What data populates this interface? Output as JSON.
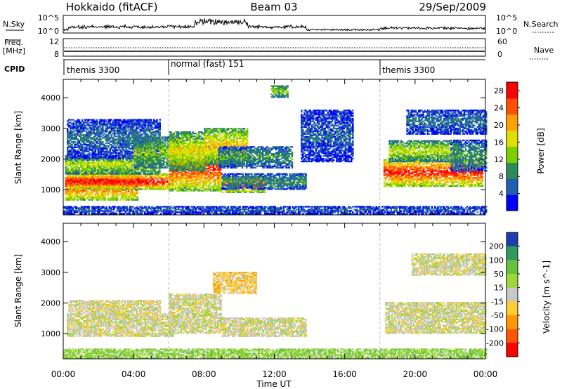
{
  "header": {
    "station": "Hokkaido (fitACF)",
    "beam": "Beam 03",
    "date": "29/Sep/2009"
  },
  "top_panels": {
    "nsky_label": "N.Sky",
    "nsky_ticks": [
      "10^5",
      "10^0"
    ],
    "nsearch_label": "N.Search",
    "freq_label": "Freq.",
    "freq_unit": "[MHz]",
    "freq_ticks": [
      "12",
      "8"
    ],
    "nave_label": "Nave",
    "nave_ticks": [
      "60",
      "0"
    ],
    "cpid_label": "CPID",
    "cpid_segments": [
      {
        "label": "themis 3300",
        "start_hour": 0
      },
      {
        "label": "normal (fast) 151",
        "start_hour": 6
      },
      {
        "label": "themis 3300",
        "start_hour": 18
      }
    ]
  },
  "chart_data": [
    {
      "type": "heatmap",
      "name": "power",
      "xlabel": "Time UT",
      "ylabel": "Slant Range [km]",
      "x_range_hours": [
        0,
        24
      ],
      "x_ticks": [
        "00:00",
        "04:00",
        "08:00",
        "12:00",
        "16:00",
        "20:00",
        "00:00"
      ],
      "ylim": [
        180,
        4600
      ],
      "y_ticks": [
        1000,
        2000,
        3000,
        4000
      ],
      "colorbar": {
        "label": "Power [dB]",
        "ticks": [
          4,
          8,
          12,
          16,
          20,
          24,
          28
        ],
        "range": [
          0,
          30
        ],
        "colors": [
          "#0000ff",
          "#2060b0",
          "#2e8b57",
          "#7cd000",
          "#e0e000",
          "#ffa000",
          "#ff5000",
          "#ff0000"
        ]
      },
      "regions": [
        {
          "t": [
            0.1,
            4.2
          ],
          "r": [
            650,
            1650
          ],
          "v": 28
        },
        {
          "t": [
            0.2,
            6.2
          ],
          "r": [
            1000,
            1500
          ],
          "v": 30
        },
        {
          "t": [
            0.1,
            5.5
          ],
          "r": [
            1500,
            2100
          ],
          "v": 16
        },
        {
          "t": [
            0.2,
            5.5
          ],
          "r": [
            2000,
            3300
          ],
          "v": 7
        },
        {
          "t": [
            4.0,
            6.5
          ],
          "r": [
            1700,
            2700
          ],
          "v": 14
        },
        {
          "t": [
            6.0,
            9.0
          ],
          "r": [
            950,
            2400
          ],
          "v": 27
        },
        {
          "t": [
            6.0,
            8.0
          ],
          "r": [
            1600,
            2900
          ],
          "v": 18
        },
        {
          "t": [
            8.0,
            10.5
          ],
          "r": [
            1800,
            3000
          ],
          "v": 20
        },
        {
          "t": [
            8.8,
            13.0
          ],
          "r": [
            1700,
            2400
          ],
          "v": 10
        },
        {
          "t": [
            9.0,
            11.5
          ],
          "r": [
            900,
            1400
          ],
          "v": 27
        },
        {
          "t": [
            9.0,
            13.8
          ],
          "r": [
            1000,
            1500
          ],
          "v": 10
        },
        {
          "t": [
            11.8,
            12.8
          ],
          "r": [
            4000,
            4400
          ],
          "v": 14
        },
        {
          "t": [
            13.5,
            16.5
          ],
          "r": [
            1900,
            3600
          ],
          "v": 6
        },
        {
          "t": [
            18.2,
            23.8
          ],
          "r": [
            1100,
            2000
          ],
          "v": 28
        },
        {
          "t": [
            18.5,
            22.5
          ],
          "r": [
            1900,
            2600
          ],
          "v": 16
        },
        {
          "t": [
            19.5,
            24.0
          ],
          "r": [
            2800,
            3600
          ],
          "v": 7
        },
        {
          "t": [
            22.0,
            24.0
          ],
          "r": [
            1600,
            2600
          ],
          "v": 10
        },
        {
          "t": [
            0.0,
            24.0
          ],
          "r": [
            200,
            450
          ],
          "v": 6
        }
      ]
    },
    {
      "type": "heatmap",
      "name": "velocity",
      "xlabel": "Time UT",
      "ylabel": "Slant Range [km]",
      "x_range_hours": [
        0,
        24
      ],
      "x_ticks": [
        "00:00",
        "04:00",
        "08:00",
        "12:00",
        "16:00",
        "20:00",
        "00:00"
      ],
      "ylim": [
        180,
        4600
      ],
      "y_ticks": [
        1000,
        2000,
        3000,
        4000
      ],
      "colorbar": {
        "label": "Velocity [m s^-1]",
        "ticks": [
          200,
          100,
          50,
          15,
          -15,
          -50,
          -100,
          -200
        ],
        "colors": [
          "#1a3fb0",
          "#2f9a5f",
          "#68c23e",
          "#9bd838",
          "#c8c8c8",
          "#ffcc33",
          "#ff9900",
          "#ff5500",
          "#ff0000"
        ]
      },
      "regions": [
        {
          "t": [
            0.2,
            6.2
          ],
          "r": [
            900,
            1650
          ],
          "v": 0
        },
        {
          "t": [
            0.3,
            5.5
          ],
          "r": [
            1650,
            2100
          ],
          "v": -5
        },
        {
          "t": [
            6.0,
            9.0
          ],
          "r": [
            1000,
            2300
          ],
          "v": 0
        },
        {
          "t": [
            9.0,
            13.8
          ],
          "r": [
            900,
            1500
          ],
          "v": 0
        },
        {
          "t": [
            8.5,
            11.0
          ],
          "r": [
            2300,
            3000
          ],
          "v": -30
        },
        {
          "t": [
            18.3,
            24.0
          ],
          "r": [
            1000,
            2000
          ],
          "v": 0
        },
        {
          "t": [
            19.8,
            24.0
          ],
          "r": [
            2900,
            3600
          ],
          "v": 0
        },
        {
          "t": [
            0.0,
            24.0
          ],
          "r": [
            200,
            500
          ],
          "v": 40
        }
      ]
    }
  ]
}
